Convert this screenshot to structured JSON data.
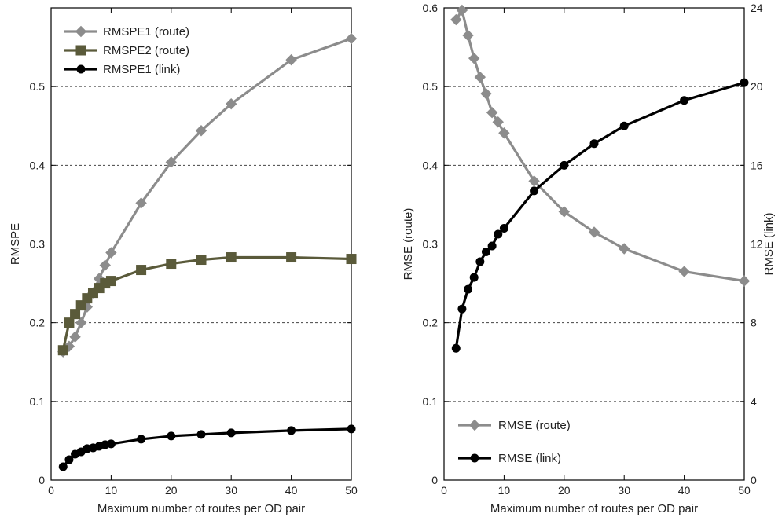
{
  "chart_data": [
    {
      "type": "line",
      "x": [
        2,
        3,
        4,
        5,
        6,
        7,
        8,
        9,
        10,
        15,
        20,
        25,
        30,
        40,
        50
      ],
      "xlabel": "Maximum number of routes per OD pair",
      "ylabel": "RMSPE",
      "xlim": [
        0,
        50
      ],
      "ylim": [
        0,
        0.6
      ],
      "xticks": [
        0,
        10,
        20,
        30,
        40,
        50
      ],
      "yticks": [
        0,
        0.1,
        0.2,
        0.3,
        0.4,
        0.5
      ],
      "ytick_labels": [
        "0",
        "0.1",
        "0.2",
        "0.3",
        "0.4",
        "0.5"
      ],
      "grid": "horizontal dashed",
      "legend_position": "top-left",
      "series": [
        {
          "name": "RMSPE1 (route)",
          "color": "#8c8c8c",
          "marker": "diamond",
          "values": [
            0.163,
            0.17,
            0.182,
            0.2,
            0.22,
            0.238,
            0.256,
            0.273,
            0.289,
            0.352,
            0.404,
            0.444,
            0.478,
            0.534,
            0.561
          ]
        },
        {
          "name": "RMSPE2 (route)",
          "color": "#5a5a3a",
          "marker": "square",
          "values": [
            0.165,
            0.2,
            0.211,
            0.222,
            0.231,
            0.238,
            0.244,
            0.25,
            0.253,
            0.267,
            0.275,
            0.28,
            0.283,
            0.283,
            0.281
          ]
        },
        {
          "name": "RMSPE1 (link)",
          "color": "#000000",
          "marker": "circle",
          "values": [
            0.017,
            0.026,
            0.033,
            0.036,
            0.04,
            0.041,
            0.043,
            0.045,
            0.046,
            0.052,
            0.056,
            0.058,
            0.06,
            0.063,
            0.065
          ]
        }
      ]
    },
    {
      "type": "line",
      "x": [
        2,
        3,
        4,
        5,
        6,
        7,
        8,
        9,
        10,
        15,
        20,
        25,
        30,
        40,
        50
      ],
      "xlabel": "Maximum number of routes per OD pair",
      "ylabel_left": "RMSE (route)",
      "ylabel_right": "RMSE (link)",
      "xlim": [
        0,
        50
      ],
      "ylim_left": [
        0,
        0.6
      ],
      "ylim_right": [
        0,
        24
      ],
      "xticks": [
        0,
        10,
        20,
        30,
        40,
        50
      ],
      "yticks_left": [
        0,
        0.1,
        0.2,
        0.3,
        0.4,
        0.5,
        0.6
      ],
      "ytick_labels_left": [
        "0",
        "0.1",
        "0.2",
        "0.3",
        "0.4",
        "0.5",
        "0.6"
      ],
      "yticks_right": [
        0,
        4,
        8,
        12,
        16,
        20,
        24
      ],
      "grid": "horizontal dashed",
      "legend_position": "bottom-left",
      "series": [
        {
          "name": "RMSE (route)",
          "axis": "left",
          "color": "#8c8c8c",
          "marker": "diamond",
          "values": [
            0.585,
            0.597,
            0.565,
            0.536,
            0.512,
            0.491,
            0.467,
            0.455,
            0.441,
            0.38,
            0.341,
            0.315,
            0.294,
            0.265,
            0.253
          ]
        },
        {
          "name": "RMSE (link)",
          "axis": "right",
          "color": "#000000",
          "marker": "circle",
          "values": [
            6.7,
            8.7,
            9.7,
            10.3,
            11.1,
            11.6,
            11.9,
            12.5,
            12.8,
            14.7,
            16.0,
            17.1,
            18.0,
            19.3,
            20.2
          ]
        }
      ]
    }
  ]
}
